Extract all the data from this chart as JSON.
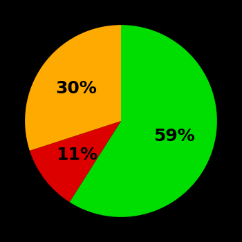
{
  "slices": [
    59,
    11,
    30
  ],
  "colors": [
    "#00dd00",
    "#dd0000",
    "#ffaa00"
  ],
  "labels": [
    "59%",
    "11%",
    "30%"
  ],
  "background_color": "#000000",
  "text_color": "#000000",
  "startangle": 90,
  "label_r": 0.58,
  "fontsize": 18,
  "figsize": [
    3.5,
    3.5
  ],
  "dpi": 100
}
